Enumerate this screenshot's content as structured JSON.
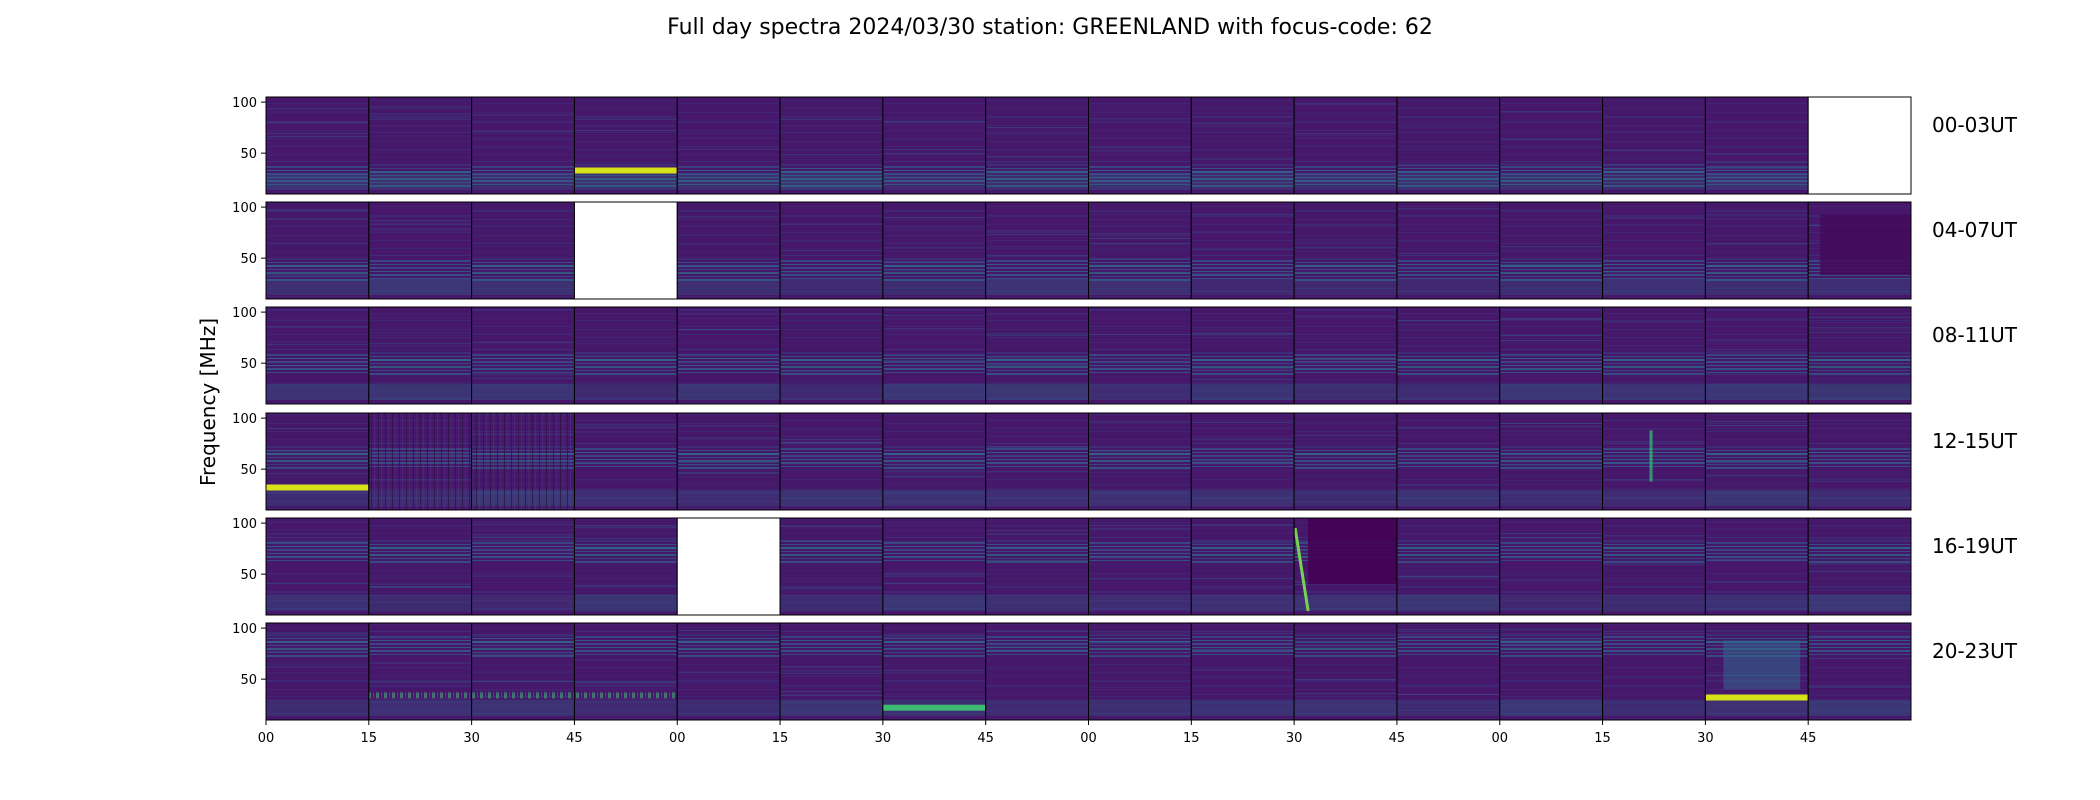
{
  "chart_data": {
    "type": "heatmap",
    "title": "Full day spectra 2024/03/30 station: GREENLAND with focus-code: 62",
    "ylabel": "Frequency [MHz]",
    "ylim": [
      10,
      105
    ],
    "y_ticks": [
      "50",
      "100"
    ],
    "x_ticks": [
      "00",
      "15",
      "30",
      "45",
      "00",
      "15",
      "30",
      "45",
      "00",
      "15",
      "30",
      "45",
      "00",
      "15",
      "30",
      "45"
    ],
    "row_labels": [
      "00-03UT",
      "04-07UT",
      "08-11UT",
      "12-15UT",
      "16-19UT",
      "20-23UT"
    ],
    "panels_per_row": 16,
    "colormap": "viridis",
    "missing_panels": [
      [
        0,
        15
      ],
      [
        1,
        3
      ],
      [
        4,
        4
      ]
    ],
    "bright_bands": [
      {
        "row": 0,
        "col": 3,
        "freq_mhz": 33
      },
      {
        "row": 3,
        "col": 0,
        "freq_mhz": 32
      },
      {
        "row": 5,
        "col": 14,
        "freq_mhz": 32
      },
      {
        "row": 5,
        "col": 6,
        "freq_mhz": 22
      }
    ]
  }
}
